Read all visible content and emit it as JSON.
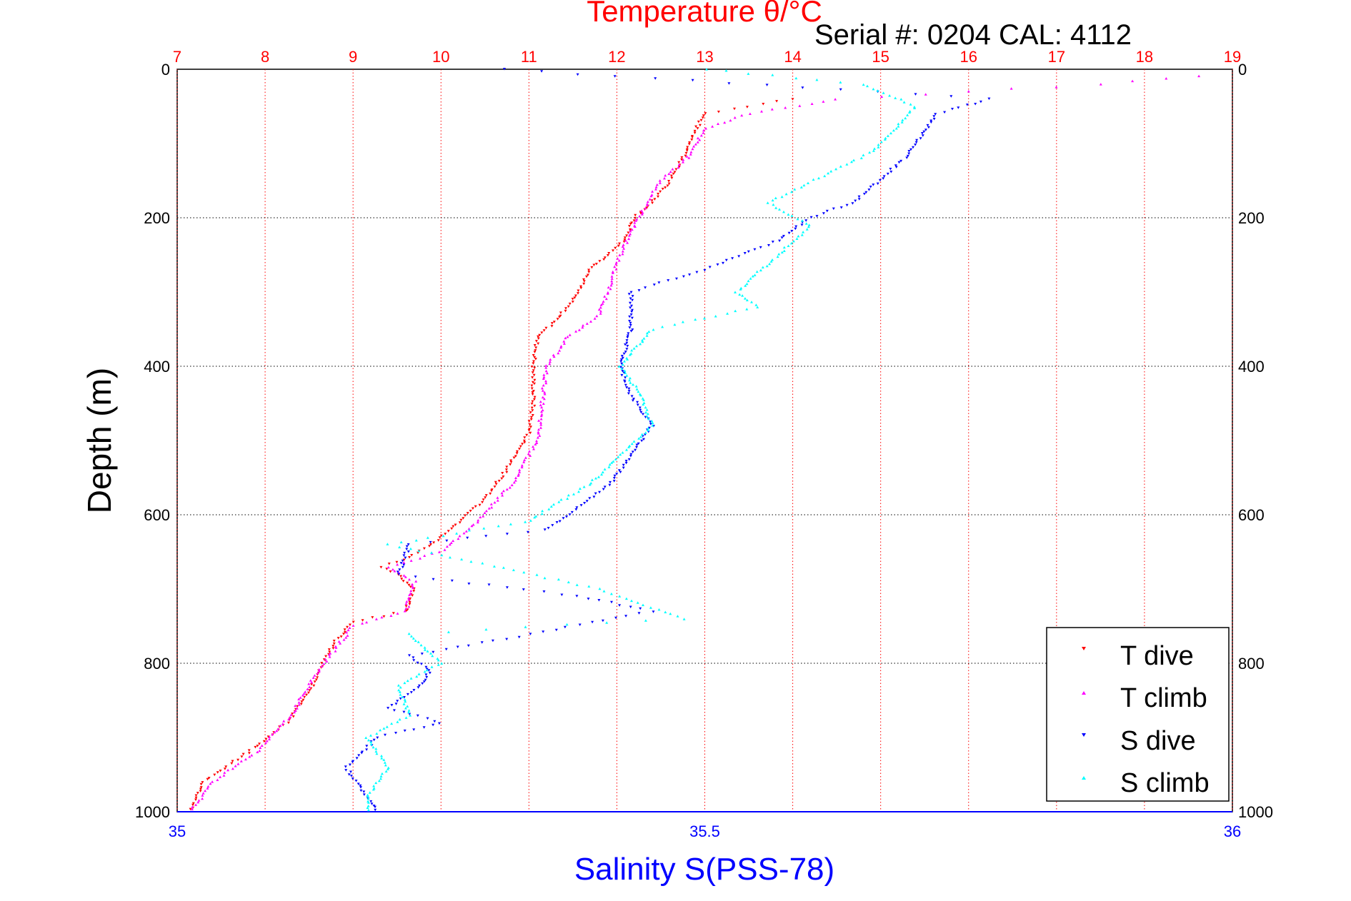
{
  "chart_data": {
    "type": "scatter",
    "title": "Temperature θ/°C",
    "serial_label": "Serial #: 0204  CAL: 4112",
    "top_axis": {
      "label": "Temperature θ/°C",
      "range": [
        7,
        19
      ],
      "ticks": [
        "7",
        "8",
        "9",
        "10",
        "11",
        "12",
        "13",
        "14",
        "15",
        "16",
        "17",
        "18",
        "19"
      ],
      "color": "#ff0000"
    },
    "bottom_axis": {
      "label": "Salinity S(PSS-78)",
      "range": [
        35,
        36
      ],
      "ticks": [
        "35",
        "35.5",
        "36"
      ],
      "color": "#0000ff"
    },
    "y_axis": {
      "label": "Depth (m)",
      "range": [
        0,
        1000
      ],
      "reversed": true,
      "ticks": [
        "0",
        "200",
        "400",
        "600",
        "800",
        "1000"
      ]
    },
    "grid": true,
    "legend_position": "bottom-right",
    "series": [
      {
        "name": "T dive",
        "axis": "temperature",
        "color": "#ff0000",
        "points": [
          [
            14,
            40
          ],
          [
            13.5,
            50
          ],
          [
            13,
            60
          ],
          [
            12.9,
            80
          ],
          [
            12.8,
            110
          ],
          [
            12.6,
            150
          ],
          [
            12.4,
            180
          ],
          [
            12.2,
            200
          ],
          [
            12.1,
            230
          ],
          [
            11.9,
            250
          ],
          [
            11.7,
            270
          ],
          [
            11.5,
            310
          ],
          [
            11.3,
            340
          ],
          [
            11.1,
            360
          ],
          [
            11.05,
            400
          ],
          [
            11.05,
            450
          ],
          [
            11,
            490
          ],
          [
            10.8,
            530
          ],
          [
            10.5,
            580
          ],
          [
            10.2,
            610
          ],
          [
            9.9,
            640
          ],
          [
            9.6,
            660
          ],
          [
            9.3,
            670
          ],
          [
            9.5,
            680
          ],
          [
            9.7,
            700
          ],
          [
            9.6,
            730
          ],
          [
            9.0,
            745
          ],
          [
            8.8,
            770
          ],
          [
            8.65,
            800
          ],
          [
            8.5,
            840
          ],
          [
            8.25,
            880
          ],
          [
            7.8,
            920
          ],
          [
            7.3,
            960
          ],
          [
            7.15,
            1000
          ]
        ]
      },
      {
        "name": "T climb",
        "axis": "temperature",
        "color": "#ff00ff",
        "points": [
          [
            18.6,
            10
          ],
          [
            17.5,
            20
          ],
          [
            16,
            30
          ],
          [
            14.5,
            40
          ],
          [
            13.5,
            60
          ],
          [
            13,
            80
          ],
          [
            12.8,
            120
          ],
          [
            12.5,
            150
          ],
          [
            12.3,
            190
          ],
          [
            12.2,
            210
          ],
          [
            12.0,
            260
          ],
          [
            11.9,
            300
          ],
          [
            11.8,
            330
          ],
          [
            11.45,
            360
          ],
          [
            11.2,
            400
          ],
          [
            11.15,
            450
          ],
          [
            11.1,
            500
          ],
          [
            10.8,
            560
          ],
          [
            10.4,
            610
          ],
          [
            10,
            650
          ],
          [
            9.4,
            670
          ],
          [
            9.7,
            690
          ],
          [
            9.6,
            730
          ],
          [
            9.0,
            750
          ],
          [
            8.8,
            780
          ],
          [
            8.55,
            820
          ],
          [
            8.3,
            870
          ],
          [
            7.9,
            920
          ],
          [
            7.4,
            960
          ],
          [
            7.15,
            1000
          ]
        ]
      },
      {
        "name": "S dive",
        "axis": "salinity",
        "color": "#0000ff",
        "points": [
          [
            35.31,
            0
          ],
          [
            35.77,
            40
          ],
          [
            35.72,
            60
          ],
          [
            35.69,
            120
          ],
          [
            35.64,
            180
          ],
          [
            35.6,
            200
          ],
          [
            35.57,
            230
          ],
          [
            35.5,
            270
          ],
          [
            35.43,
            300
          ],
          [
            35.43,
            350
          ],
          [
            35.42,
            400
          ],
          [
            35.43,
            440
          ],
          [
            35.45,
            480
          ],
          [
            35.41,
            560
          ],
          [
            35.35,
            620
          ],
          [
            35.22,
            640
          ],
          [
            35.21,
            680
          ],
          [
            35.38,
            710
          ],
          [
            35.45,
            730
          ],
          [
            35.3,
            770
          ],
          [
            35.22,
            790
          ],
          [
            35.24,
            810
          ],
          [
            35.23,
            830
          ],
          [
            35.2,
            860
          ],
          [
            35.25,
            880
          ],
          [
            35.19,
            900
          ],
          [
            35.16,
            940
          ],
          [
            35.18,
            980
          ],
          [
            35.19,
            1000
          ]
        ]
      },
      {
        "name": "S climb",
        "axis": "salinity",
        "color": "#00ffff",
        "points": [
          [
            35.5,
            0
          ],
          [
            35.65,
            20
          ],
          [
            35.7,
            50
          ],
          [
            35.66,
            110
          ],
          [
            35.56,
            180
          ],
          [
            35.6,
            210
          ],
          [
            35.57,
            250
          ],
          [
            35.53,
            300
          ],
          [
            35.55,
            320
          ],
          [
            35.45,
            350
          ],
          [
            35.42,
            400
          ],
          [
            35.44,
            440
          ],
          [
            35.45,
            480
          ],
          [
            35.39,
            560
          ],
          [
            35.33,
            610
          ],
          [
            35.2,
            640
          ],
          [
            35.27,
            660
          ],
          [
            35.4,
            700
          ],
          [
            35.48,
            740
          ],
          [
            35.22,
            760
          ],
          [
            35.25,
            800
          ],
          [
            35.21,
            830
          ],
          [
            35.22,
            870
          ],
          [
            35.18,
            900
          ],
          [
            35.2,
            940
          ],
          [
            35.18,
            980
          ],
          [
            35.18,
            1000
          ]
        ]
      }
    ]
  }
}
